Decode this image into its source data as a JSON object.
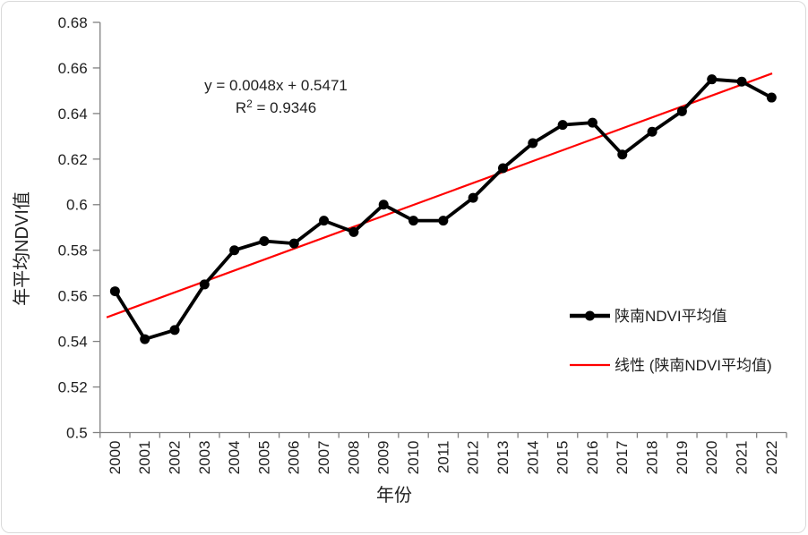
{
  "frame": {
    "background": "#FFFFFF",
    "border_color": "#D9D9D9"
  },
  "chart_data": {
    "type": "line",
    "title": "",
    "categories": [
      "2000",
      "2001",
      "2002",
      "2003",
      "2004",
      "2005",
      "2006",
      "2007",
      "2008",
      "2009",
      "2010",
      "2011",
      "2012",
      "2013",
      "2014",
      "2015",
      "2016",
      "2017",
      "2018",
      "2019",
      "2020",
      "2021",
      "2022"
    ],
    "series": [
      {
        "name": "陕南NDVI平均值",
        "color": "#000000",
        "values": [
          0.562,
          0.541,
          0.545,
          0.565,
          0.58,
          0.584,
          0.583,
          0.593,
          0.588,
          0.6,
          0.593,
          0.593,
          0.603,
          0.616,
          0.627,
          0.635,
          0.636,
          0.622,
          0.632,
          0.641,
          0.655,
          0.654,
          0.647
        ]
      }
    ],
    "trendline": {
      "name": "线性 (陕南NDVI平均值)",
      "color": "#FF0000",
      "slope": 0.0048,
      "intercept": 0.5471,
      "r_squared": 0.9346
    },
    "annotation": {
      "equation": "y = 0.0048x + 0.5471",
      "r2_base": "R",
      "r2_sup": "2",
      "r2_rest": " = 0.9346"
    },
    "xlabel": "年份",
    "ylabel": "年平均NDVI值",
    "ylim": [
      0.5,
      0.68
    ],
    "y_ticks": [
      "0.5",
      "0.52",
      "0.54",
      "0.56",
      "0.58",
      "0.6",
      "0.62",
      "0.64",
      "0.66",
      "0.68"
    ],
    "grid": false,
    "axis_color": "#808080",
    "text_color": "#1F1F1F",
    "legend": {
      "position": "middle-right",
      "items": [
        {
          "label": "陕南NDVI平均值",
          "marker": "line-dot",
          "color": "#000000"
        },
        {
          "label": "线性 (陕南NDVI平均值)",
          "marker": "line",
          "color": "#FF0000"
        }
      ]
    }
  }
}
